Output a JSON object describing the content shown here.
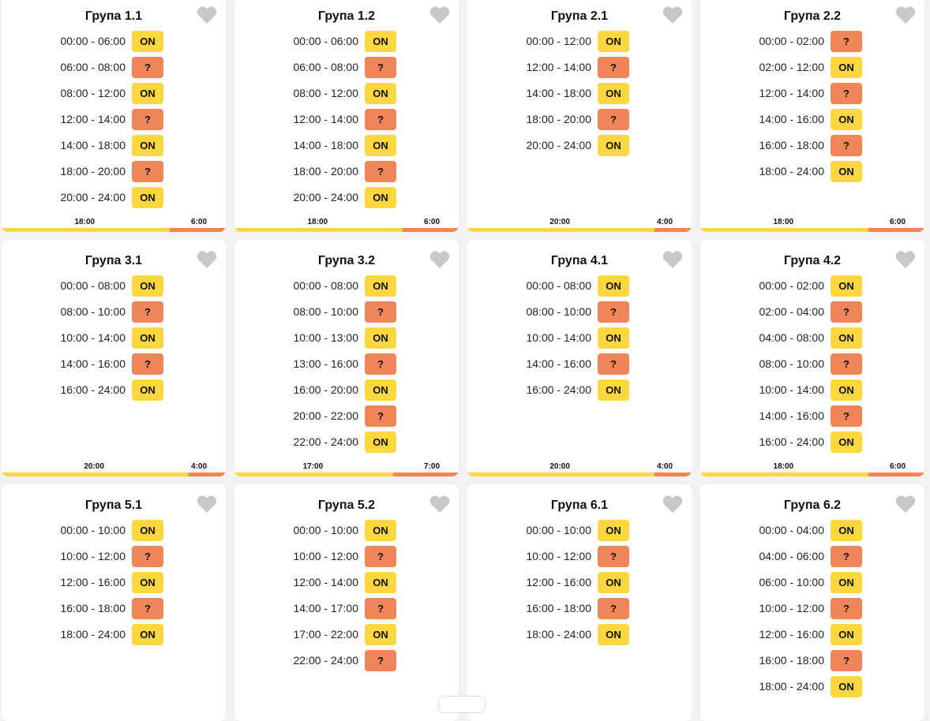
{
  "favorite_icon": "heart-icon",
  "colors": {
    "on": "#fcd740",
    "unknown": "#f0855a",
    "heart": "#c8c8c8"
  },
  "groups": [
    {
      "title": "Група 1.1",
      "on_hours": 18,
      "bar": {
        "on": "18:00",
        "off": "6:00"
      },
      "slots": [
        {
          "time": "00:00 - 06:00",
          "status": "ON"
        },
        {
          "time": "06:00 - 08:00",
          "status": "?"
        },
        {
          "time": "08:00 - 12:00",
          "status": "ON"
        },
        {
          "time": "12:00 - 14:00",
          "status": "?"
        },
        {
          "time": "14:00 - 18:00",
          "status": "ON"
        },
        {
          "time": "18:00 - 20:00",
          "status": "?"
        },
        {
          "time": "20:00 - 24:00",
          "status": "ON"
        }
      ]
    },
    {
      "title": "Група 1.2",
      "on_hours": 18,
      "bar": {
        "on": "18:00",
        "off": "6:00"
      },
      "slots": [
        {
          "time": "00:00 - 06:00",
          "status": "ON"
        },
        {
          "time": "06:00 - 08:00",
          "status": "?"
        },
        {
          "time": "08:00 - 12:00",
          "status": "ON"
        },
        {
          "time": "12:00 - 14:00",
          "status": "?"
        },
        {
          "time": "14:00 - 18:00",
          "status": "ON"
        },
        {
          "time": "18:00 - 20:00",
          "status": "?"
        },
        {
          "time": "20:00 - 24:00",
          "status": "ON"
        }
      ]
    },
    {
      "title": "Група 2.1",
      "on_hours": 20,
      "bar": {
        "on": "20:00",
        "off": "4:00"
      },
      "slots": [
        {
          "time": "00:00 - 12:00",
          "status": "ON"
        },
        {
          "time": "12:00 - 14:00",
          "status": "?"
        },
        {
          "time": "14:00 - 18:00",
          "status": "ON"
        },
        {
          "time": "18:00 - 20:00",
          "status": "?"
        },
        {
          "time": "20:00 - 24:00",
          "status": "ON"
        }
      ]
    },
    {
      "title": "Група 2.2",
      "on_hours": 18,
      "bar": {
        "on": "18:00",
        "off": "6:00"
      },
      "slots": [
        {
          "time": "00:00 - 02:00",
          "status": "?"
        },
        {
          "time": "02:00 - 12:00",
          "status": "ON"
        },
        {
          "time": "12:00 - 14:00",
          "status": "?"
        },
        {
          "time": "14:00 - 16:00",
          "status": "ON"
        },
        {
          "time": "16:00 - 18:00",
          "status": "?"
        },
        {
          "time": "18:00 - 24:00",
          "status": "ON"
        }
      ]
    },
    {
      "title": "Група 3.1",
      "on_hours": 20,
      "bar": {
        "on": "20:00",
        "off": "4:00"
      },
      "slots": [
        {
          "time": "00:00 - 08:00",
          "status": "ON"
        },
        {
          "time": "08:00 - 10:00",
          "status": "?"
        },
        {
          "time": "10:00 - 14:00",
          "status": "ON"
        },
        {
          "time": "14:00 - 16:00",
          "status": "?"
        },
        {
          "time": "16:00 - 24:00",
          "status": "ON"
        }
      ]
    },
    {
      "title": "Група 3.2",
      "on_hours": 17,
      "bar": {
        "on": "17:00",
        "off": "7:00"
      },
      "slots": [
        {
          "time": "00:00 - 08:00",
          "status": "ON"
        },
        {
          "time": "08:00 - 10:00",
          "status": "?"
        },
        {
          "time": "10:00 - 13:00",
          "status": "ON"
        },
        {
          "time": "13:00 - 16:00",
          "status": "?"
        },
        {
          "time": "16:00 - 20:00",
          "status": "ON"
        },
        {
          "time": "20:00 - 22:00",
          "status": "?"
        },
        {
          "time": "22:00 - 24:00",
          "status": "ON"
        }
      ]
    },
    {
      "title": "Група 4.1",
      "on_hours": 20,
      "bar": {
        "on": "20:00",
        "off": "4:00"
      },
      "slots": [
        {
          "time": "00:00 - 08:00",
          "status": "ON"
        },
        {
          "time": "08:00 - 10:00",
          "status": "?"
        },
        {
          "time": "10:00 - 14:00",
          "status": "ON"
        },
        {
          "time": "14:00 - 16:00",
          "status": "?"
        },
        {
          "time": "16:00 - 24:00",
          "status": "ON"
        }
      ]
    },
    {
      "title": "Група 4.2",
      "on_hours": 18,
      "bar": {
        "on": "18:00",
        "off": "6:00"
      },
      "slots": [
        {
          "time": "00:00 - 02:00",
          "status": "ON"
        },
        {
          "time": "02:00 - 04:00",
          "status": "?"
        },
        {
          "time": "04:00 - 08:00",
          "status": "ON"
        },
        {
          "time": "08:00 - 10:00",
          "status": "?"
        },
        {
          "time": "10:00 - 14:00",
          "status": "ON"
        },
        {
          "time": "14:00 - 16:00",
          "status": "?"
        },
        {
          "time": "16:00 - 24:00",
          "status": "ON"
        }
      ]
    },
    {
      "title": "Група 5.1",
      "slots": [
        {
          "time": "00:00 - 10:00",
          "status": "ON"
        },
        {
          "time": "10:00 - 12:00",
          "status": "?"
        },
        {
          "time": "12:00 - 16:00",
          "status": "ON"
        },
        {
          "time": "16:00 - 18:00",
          "status": "?"
        },
        {
          "time": "18:00 - 24:00",
          "status": "ON"
        }
      ]
    },
    {
      "title": "Група 5.2",
      "slots": [
        {
          "time": "00:00 - 10:00",
          "status": "ON"
        },
        {
          "time": "10:00 - 12:00",
          "status": "?"
        },
        {
          "time": "12:00 - 14:00",
          "status": "ON"
        },
        {
          "time": "14:00 - 17:00",
          "status": "?"
        },
        {
          "time": "17:00 - 22:00",
          "status": "ON"
        },
        {
          "time": "22:00 - 24:00",
          "status": "?"
        }
      ]
    },
    {
      "title": "Група 6.1",
      "slots": [
        {
          "time": "00:00 - 10:00",
          "status": "ON"
        },
        {
          "time": "10:00 - 12:00",
          "status": "?"
        },
        {
          "time": "12:00 - 16:00",
          "status": "ON"
        },
        {
          "time": "16:00 - 18:00",
          "status": "?"
        },
        {
          "time": "18:00 - 24:00",
          "status": "ON"
        }
      ]
    },
    {
      "title": "Група 6.2",
      "slots": [
        {
          "time": "00:00 - 04:00",
          "status": "ON"
        },
        {
          "time": "04:00 - 06:00",
          "status": "?"
        },
        {
          "time": "06:00 - 10:00",
          "status": "ON"
        },
        {
          "time": "10:00 - 12:00",
          "status": "?"
        },
        {
          "time": "12:00 - 16:00",
          "status": "ON"
        },
        {
          "time": "16:00 - 18:00",
          "status": "?"
        },
        {
          "time": "18:00 - 24:00",
          "status": "ON"
        }
      ]
    }
  ]
}
